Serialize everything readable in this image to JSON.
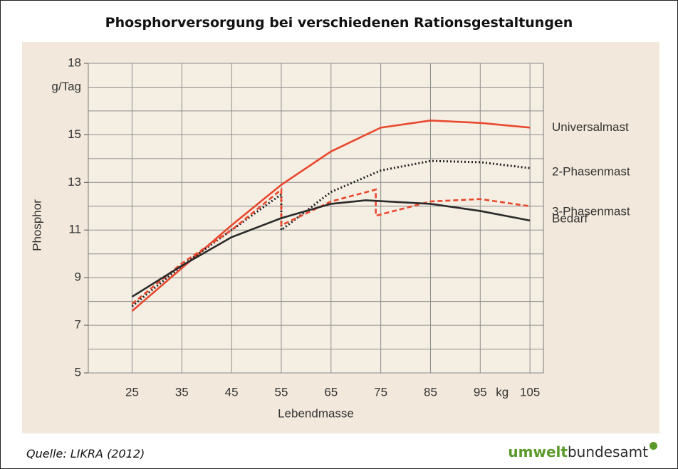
{
  "title": "Phosphorversorgung bei verschiedenen Rationsgestaltungen",
  "source": "Quelle: LIKRA (2012)",
  "logo": {
    "bold": "umwelt",
    "rest": "bundesamt"
  },
  "chart_data": {
    "type": "line",
    "x_label": "Lebendmasse",
    "y_label": "Phosphor",
    "y_unit": "g/Tag",
    "x_unit": "kg",
    "xlim": [
      16.2,
      107.7
    ],
    "xticks": [
      25,
      35,
      45,
      55,
      65,
      75,
      85,
      95,
      105
    ],
    "ylim": [
      5,
      18
    ],
    "yticks": [
      5,
      7,
      9,
      11,
      13,
      15,
      18
    ],
    "ygrid": [
      5,
      6,
      7,
      8,
      9,
      10,
      11,
      12,
      13,
      14,
      15,
      16,
      17,
      18
    ],
    "grid": true,
    "series": [
      {
        "name": "Universalmast",
        "color": "#e8492e",
        "dash": "solid",
        "x": [
          25,
          35,
          45,
          55,
          65,
          75,
          85,
          95,
          105
        ],
        "values": [
          7.6,
          9.4,
          11.2,
          12.9,
          14.3,
          15.3,
          15.6,
          15.5,
          15.3
        ]
      },
      {
        "name": "2-Phasenmast",
        "color": "#222222",
        "dash": "dotted",
        "x": [
          25,
          35,
          45,
          55,
          55,
          65,
          75,
          85,
          95,
          105
        ],
        "values": [
          7.8,
          9.5,
          11.0,
          12.5,
          11.0,
          12.6,
          13.5,
          13.9,
          13.85,
          13.6
        ]
      },
      {
        "name": "3-Phasenmast",
        "color": "#e8492e",
        "dash": "dashed",
        "x": [
          25,
          35,
          45,
          55,
          55,
          65,
          74,
          74,
          85,
          95,
          105
        ],
        "values": [
          7.9,
          9.6,
          11.0,
          12.7,
          11.2,
          12.2,
          12.7,
          11.6,
          12.2,
          12.3,
          12.0
        ]
      },
      {
        "name": "Bedarf",
        "color": "#2a2a2a",
        "dash": "solid",
        "x": [
          25,
          35,
          45,
          55,
          65,
          72,
          85,
          95,
          105
        ],
        "values": [
          8.2,
          9.5,
          10.7,
          11.5,
          12.1,
          12.25,
          12.1,
          11.8,
          11.4
        ]
      }
    ]
  }
}
